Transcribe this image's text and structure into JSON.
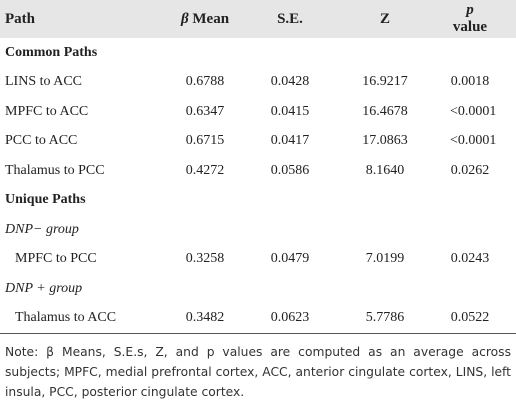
{
  "table": {
    "header": [
      {
        "label": "Path"
      },
      {
        "symbol": "β",
        "label": "Mean"
      },
      {
        "label": "S.E."
      },
      {
        "label": "Z"
      },
      {
        "symbol": "p",
        "label": "value"
      }
    ],
    "sections": [
      {
        "title": "Common Paths",
        "groups": [
          {
            "rows": [
              [
                "LINS to ACC",
                "0.6788",
                "0.0428",
                "16.9217",
                "0.0018"
              ],
              [
                "MPFC to ACC",
                "0.6347",
                "0.0415",
                "16.4678",
                "<0.0001"
              ],
              [
                "PCC to ACC",
                "0.6715",
                "0.0417",
                "17.0863",
                "<0.0001"
              ],
              [
                "Thalamus to PCC",
                "0.4272",
                "0.0586",
                "8.1640",
                "0.0262"
              ]
            ]
          }
        ]
      },
      {
        "title": "Unique Paths",
        "groups": [
          {
            "title": "DNP− group",
            "rows": [
              [
                "MPFC to PCC",
                "0.3258",
                "0.0479",
                "7.0199",
                "0.0243"
              ]
            ]
          },
          {
            "title": "DNP + group",
            "rows": [
              [
                "Thalamus to ACC",
                "0.3482",
                "0.0623",
                "5.7786",
                "0.0522"
              ]
            ]
          }
        ]
      }
    ]
  },
  "note": "Note: β Means, S.E.s, Z, and p values are computed as an average across subjects; MPFC, medial prefrontal cortex, ACC, anterior cingulate cortex, LINS, left insula, PCC, posterior cingulate cortex."
}
